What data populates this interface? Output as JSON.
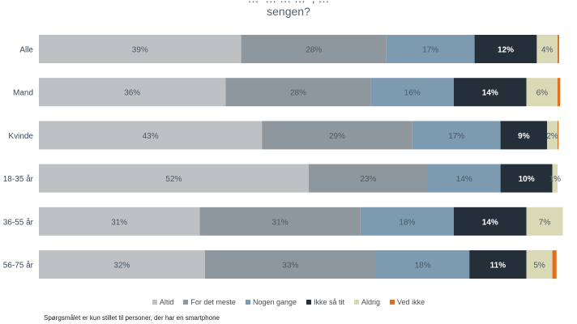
{
  "title": {
    "line1": "… ‌ … … … ‌ , …",
    "line2": "sengen?"
  },
  "footnote": "Spørgsmålet er kun stillet til personer, der har en smartphone",
  "colors": {
    "Altid": "#bdc1c4",
    "For det meste": "#8f979e",
    "Nogen gange": "#7c9bb0",
    "Ikke så tit": "#242f3a",
    "Aldrig": "#d9d9b6",
    "Ved ikke": "#e07020"
  },
  "chart_data": {
    "type": "bar",
    "orientation": "horizontal",
    "stacked": true,
    "categories": [
      "Alle",
      "Mand",
      "Kvinde",
      "18-35 år",
      "36-55 år",
      "56-75 år"
    ],
    "series": [
      {
        "name": "Altid",
        "values": [
          39,
          36,
          43,
          52,
          31,
          32
        ],
        "labels": [
          "39%",
          "36%",
          "43%",
          "52%",
          "31%",
          "32%"
        ]
      },
      {
        "name": "For det meste",
        "values": [
          28,
          28,
          29,
          23,
          31,
          33
        ],
        "labels": [
          "28%",
          "28%",
          "29%",
          "23%",
          "31%",
          "33%"
        ]
      },
      {
        "name": "Nogen gange",
        "values": [
          17,
          16,
          17,
          14,
          18,
          18
        ],
        "labels": [
          "17%",
          "16%",
          "17%",
          "14%",
          "18%",
          "18%"
        ]
      },
      {
        "name": "Ikke så tit",
        "values": [
          12,
          14,
          9,
          10,
          14,
          11
        ],
        "labels": [
          "12%",
          "14%",
          "9%",
          "10%",
          "14%",
          "11%"
        ]
      },
      {
        "name": "Aldrig",
        "values": [
          4,
          6,
          2,
          1,
          7,
          5
        ],
        "labels": [
          "4%",
          "6%",
          "2%",
          "1%",
          "7%",
          "5%"
        ]
      },
      {
        "name": "Ved ikke",
        "values": [
          0.3,
          0.5,
          0.2,
          0,
          0,
          0.8
        ],
        "labels": [
          "",
          "",
          "",
          "",
          "",
          ""
        ]
      }
    ],
    "xlim": [
      0,
      100
    ],
    "legend": "bottom"
  }
}
